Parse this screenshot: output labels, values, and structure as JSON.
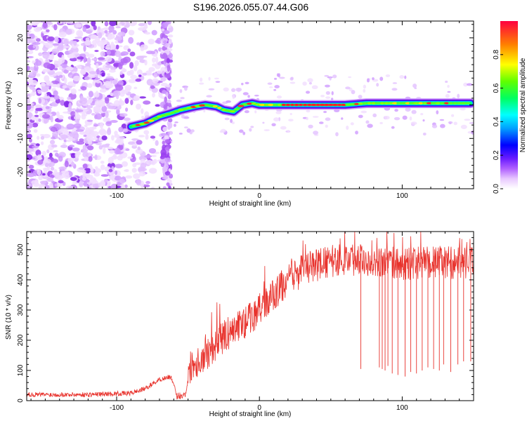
{
  "title": "S196.2026.055.07.44.G06",
  "chart_data": [
    {
      "type": "heatmap",
      "xlabel": "Height of straight line (km)",
      "ylabel": "Frequency (Hz)",
      "xlim": [
        -163,
        150
      ],
      "ylim": [
        -25,
        25
      ],
      "xticks": [
        -100,
        0,
        100
      ],
      "yticks": [
        -20,
        -10,
        0,
        10,
        20
      ],
      "colorbar": {
        "label": "Normalized spectral amplitude",
        "range": [
          0,
          1
        ],
        "ticks": [
          0,
          0.2,
          0.4,
          0.6,
          0.8
        ]
      },
      "ridge": [
        {
          "x": -90,
          "f": -6.5
        },
        {
          "x": -80,
          "f": -5.5
        },
        {
          "x": -70,
          "f": -3.5
        },
        {
          "x": -62,
          "f": -2.5
        },
        {
          "x": -55,
          "f": -1.5
        },
        {
          "x": -45,
          "f": -0.5
        },
        {
          "x": -38,
          "f": 0.0
        },
        {
          "x": -30,
          "f": -0.5
        },
        {
          "x": -25,
          "f": -1.5
        },
        {
          "x": -18,
          "f": -2.0
        },
        {
          "x": -12,
          "f": 0.0
        },
        {
          "x": -5,
          "f": 0.5
        },
        {
          "x": 0,
          "f": 0.0
        },
        {
          "x": 10,
          "f": 0.0
        },
        {
          "x": 20,
          "f": 0.0
        },
        {
          "x": 40,
          "f": 0.0
        },
        {
          "x": 60,
          "f": 0.0
        },
        {
          "x": 75,
          "f": 0.5
        },
        {
          "x": 90,
          "f": 0.5
        },
        {
          "x": 100,
          "f": 0.5
        },
        {
          "x": 110,
          "f": 0.5
        },
        {
          "x": 120,
          "f": 0.5
        },
        {
          "x": 135,
          "f": 0.5
        },
        {
          "x": 148,
          "f": 0.5
        }
      ]
    },
    {
      "type": "line",
      "xlabel": "Height of straight line (km)",
      "ylabel": "SNR (10 * v/v)",
      "xlim": [
        -163,
        150
      ],
      "ylim": [
        0,
        560
      ],
      "xticks": [
        -100,
        0,
        100
      ],
      "yticks": [
        0,
        100,
        200,
        300,
        400,
        500
      ],
      "color": "#e8322c",
      "envelope": [
        {
          "x": -163,
          "y": 20
        },
        {
          "x": -120,
          "y": 20
        },
        {
          "x": -90,
          "y": 25
        },
        {
          "x": -80,
          "y": 40
        },
        {
          "x": -70,
          "y": 70
        },
        {
          "x": -62,
          "y": 80
        },
        {
          "x": -58,
          "y": 15
        },
        {
          "x": -52,
          "y": 20
        },
        {
          "x": -48,
          "y": 120
        },
        {
          "x": -40,
          "y": 140
        },
        {
          "x": -30,
          "y": 190
        },
        {
          "x": -20,
          "y": 230
        },
        {
          "x": -10,
          "y": 260
        },
        {
          "x": 0,
          "y": 300
        },
        {
          "x": 10,
          "y": 350
        },
        {
          "x": 20,
          "y": 400
        },
        {
          "x": 30,
          "y": 430
        },
        {
          "x": 40,
          "y": 450
        },
        {
          "x": 60,
          "y": 470
        },
        {
          "x": 80,
          "y": 465
        },
        {
          "x": 100,
          "y": 450
        },
        {
          "x": 120,
          "y": 460
        },
        {
          "x": 150,
          "y": 455
        }
      ],
      "dropouts": [
        {
          "x": 71,
          "y": 105
        },
        {
          "x": 84,
          "y": 110
        },
        {
          "x": 86,
          "y": 105
        },
        {
          "x": 88,
          "y": 100
        },
        {
          "x": 90,
          "y": 115
        },
        {
          "x": 93,
          "y": 90
        },
        {
          "x": 97,
          "y": 85
        },
        {
          "x": 102,
          "y": 80
        },
        {
          "x": 106,
          "y": 95
        },
        {
          "x": 110,
          "y": 90
        },
        {
          "x": 114,
          "y": 100
        },
        {
          "x": 118,
          "y": 110
        },
        {
          "x": 122,
          "y": 105
        },
        {
          "x": 126,
          "y": 100
        },
        {
          "x": 129,
          "y": 120
        },
        {
          "x": 134,
          "y": 95
        },
        {
          "x": 139,
          "y": 120
        },
        {
          "x": 143,
          "y": 130
        },
        {
          "x": 148,
          "y": 130
        }
      ]
    }
  ]
}
